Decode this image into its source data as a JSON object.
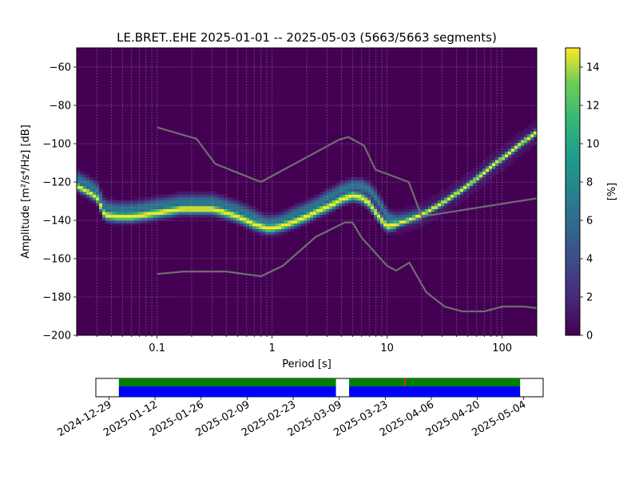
{
  "chart_data": [
    {
      "type": "heatmap",
      "title": "LE.BRET..EHE   2025-01-01 -- 2025-05-03  (5663/5663 segments)",
      "xlabel": "Period [s]",
      "ylabel": "Amplitude [m²/s⁴/Hz] [dB]",
      "xscale": "log",
      "xlim": [
        0.02,
        200
      ],
      "ylim": [
        -200,
        -50
      ],
      "x_ticks": [
        0.1,
        1,
        10,
        100
      ],
      "x_tick_labels": [
        "0.1",
        "1",
        "10",
        "100"
      ],
      "y_ticks": [
        -200,
        -180,
        -160,
        -140,
        -120,
        -100,
        -80,
        -60
      ],
      "y_tick_labels": [
        "−200",
        "−180",
        "−160",
        "−140",
        "−120",
        "−100",
        "−80",
        "−60"
      ],
      "grid": true,
      "colormap": "viridis",
      "colorbar": {
        "label": "[%]",
        "range": [
          0,
          15
        ],
        "ticks": [
          0,
          2,
          4,
          6,
          8,
          10,
          12,
          14
        ],
        "tick_labels": [
          "0",
          "2",
          "4",
          "6",
          "8",
          "10",
          "12",
          "14"
        ]
      },
      "series": [
        {
          "role": "PDF mode",
          "x": [
            0.02,
            0.025,
            0.03,
            0.035,
            0.045,
            0.06,
            0.08,
            0.1,
            0.13,
            0.16,
            0.2,
            0.25,
            0.3,
            0.35,
            0.4,
            0.5,
            0.6,
            0.7,
            0.8,
            0.9,
            1.0,
            1.2,
            1.5,
            2.0,
            2.5,
            3.0,
            3.5,
            4.0,
            5.0,
            6.0,
            7.0,
            8.0,
            9.0,
            10.0,
            12.0,
            15.0,
            20.0,
            30.0,
            50.0,
            80.0,
            120.0,
            160.0,
            200.0
          ],
          "y": [
            -122,
            -125,
            -128,
            -137,
            -138,
            -138,
            -137,
            -136,
            -135,
            -134,
            -134,
            -134,
            -134,
            -135,
            -136,
            -138,
            -140,
            -142,
            -143,
            -144,
            -144,
            -143,
            -141,
            -138,
            -135,
            -133,
            -131,
            -129,
            -127,
            -128,
            -131,
            -136,
            -140,
            -143,
            -142,
            -140,
            -137,
            -131,
            -122,
            -112,
            -104,
            -98,
            -94
          ]
        },
        {
          "role": "PDF spread",
          "x": [
            0.02,
            0.025,
            0.03,
            0.035,
            0.045,
            0.06,
            0.08,
            0.1,
            0.13,
            0.16,
            0.2,
            0.25,
            0.3,
            0.35,
            0.4,
            0.5,
            0.6,
            0.7,
            0.8,
            0.9,
            1.0,
            1.2,
            1.5,
            2.0,
            2.5,
            3.0,
            3.5,
            4.0,
            5.0,
            6.0,
            7.0,
            8.0,
            9.0,
            10.0,
            12.0,
            15.0,
            20.0
          ],
          "y": [
            -118,
            -121,
            -124,
            -133,
            -134,
            -134,
            -133,
            -132,
            -131,
            -130,
            -130,
            -130,
            -130,
            -131,
            -132,
            -134,
            -136,
            -138,
            -140,
            -141,
            -141,
            -140,
            -137,
            -134,
            -131,
            -128,
            -126,
            -124,
            -122,
            -122,
            -124,
            -128,
            -133,
            -138,
            -140,
            -139,
            -137
          ]
        },
        {
          "role": "high noise model",
          "x": [
            0.1,
            0.22,
            0.32,
            0.8,
            3.8,
            4.6,
            6.3,
            7.9,
            15.4,
            20.0,
            200.0
          ],
          "y": [
            -91.5,
            -97.4,
            -110.5,
            -120.0,
            -98.0,
            -96.5,
            -101.0,
            -113.5,
            -120.0,
            -138.0,
            -128.5
          ]
        },
        {
          "role": "low noise model",
          "x": [
            0.1,
            0.17,
            0.4,
            0.8,
            1.24,
            2.4,
            4.3,
            5.0,
            6.0,
            10.0,
            12.0,
            15.6,
            21.9,
            31.6,
            45.0,
            70.0,
            101.0,
            154.0,
            200.0
          ],
          "y": [
            -168.0,
            -166.7,
            -166.7,
            -169.2,
            -163.7,
            -148.6,
            -141.1,
            -141.1,
            -149.0,
            -163.8,
            -166.2,
            -162.1,
            -177.5,
            -185.0,
            -187.5,
            -187.5,
            -185.0,
            -185.0,
            -185.8
          ]
        }
      ]
    },
    {
      "type": "bar",
      "role": "data availability timeline",
      "x_tick_labels": [
        "2024-12-29",
        "2025-01-12",
        "2025-01-26",
        "2025-02-09",
        "2025-02-23",
        "2025-03-09",
        "2025-03-23",
        "2025-04-06",
        "2025-04-20",
        "2025-05-04"
      ],
      "xlim": [
        "2024-12-25",
        "2025-05-10"
      ],
      "segments": [
        {
          "start": "2025-01-01",
          "end": "2025-03-08",
          "color": "#0000ff"
        },
        {
          "start": "2025-03-12",
          "end": "2025-05-03",
          "color": "#0000ff"
        }
      ],
      "used_segments": [
        {
          "start": "2025-01-01",
          "end": "2025-03-08",
          "color": "#008000"
        },
        {
          "start": "2025-03-12",
          "end": "2025-05-03",
          "color": "#008000"
        }
      ],
      "gap_marks": [
        {
          "date": "2025-03-29",
          "color": "#d62728"
        }
      ]
    }
  ]
}
